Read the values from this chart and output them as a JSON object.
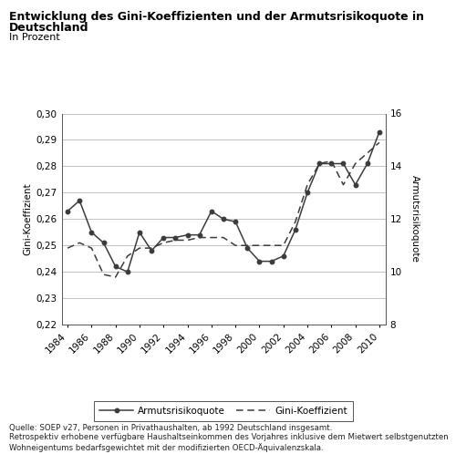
{
  "title_line1": "Entwicklung des Gini-Koeffizienten und der Armutsrisikoquote in",
  "title_line2": "Deutschland",
  "subtitle": "In Prozent",
  "years": [
    1984,
    1985,
    1986,
    1987,
    1988,
    1989,
    1990,
    1991,
    1992,
    1993,
    1994,
    1995,
    1996,
    1997,
    1998,
    1999,
    2000,
    2001,
    2002,
    2003,
    2004,
    2005,
    2006,
    2007,
    2008,
    2009,
    2010
  ],
  "gini": [
    0.249,
    0.251,
    0.249,
    0.239,
    0.238,
    0.246,
    0.249,
    0.249,
    0.251,
    0.252,
    0.252,
    0.253,
    0.253,
    0.253,
    0.25,
    0.25,
    0.25,
    0.25,
    0.25,
    0.259,
    0.273,
    0.281,
    0.282,
    0.273,
    0.281,
    0.285,
    0.289
  ],
  "armutsrisiko": [
    0.263,
    0.267,
    0.255,
    0.251,
    0.242,
    0.24,
    0.255,
    0.248,
    0.253,
    0.253,
    0.254,
    0.254,
    0.263,
    0.26,
    0.259,
    0.249,
    0.244,
    0.244,
    0.246,
    0.256,
    0.27,
    0.281,
    0.281,
    0.281,
    0.273,
    0.281,
    0.293
  ],
  "left_ylim": [
    0.22,
    0.3
  ],
  "right_ylim": [
    8,
    16
  ],
  "left_yticks": [
    0.22,
    0.23,
    0.24,
    0.25,
    0.26,
    0.27,
    0.28,
    0.29,
    0.3
  ],
  "right_yticks": [
    8,
    10,
    12,
    14,
    16
  ],
  "xtick_labels": [
    "1984",
    "1986",
    "1988",
    "1990",
    "1992",
    "1994",
    "1996",
    "1998",
    "2000",
    "2002",
    "2004",
    "2006",
    "2008",
    "2010"
  ],
  "left_ylabel": "Gini-Koeffizient",
  "right_ylabel": "Armutsrisikoquote",
  "legend_label_solid": "Armutsrisikoquote",
  "legend_label_dashed": "Gini-Koeffizient",
  "source_text": "Quelle: SOEP v27, Personen in Privathaushalten, ab 1992 Deutschland insgesamt.\nRetrospektiv erhobene verfügbare Haushaltseinkommen des Vorjahres inklusive dem Mietwert selbstgenutzten\nWohneigentums bedarfsgewichtet mit der modifizierten OECD-Äquivalenzskala.",
  "line_color": "#3c3c3c",
  "background_color": "#ffffff"
}
